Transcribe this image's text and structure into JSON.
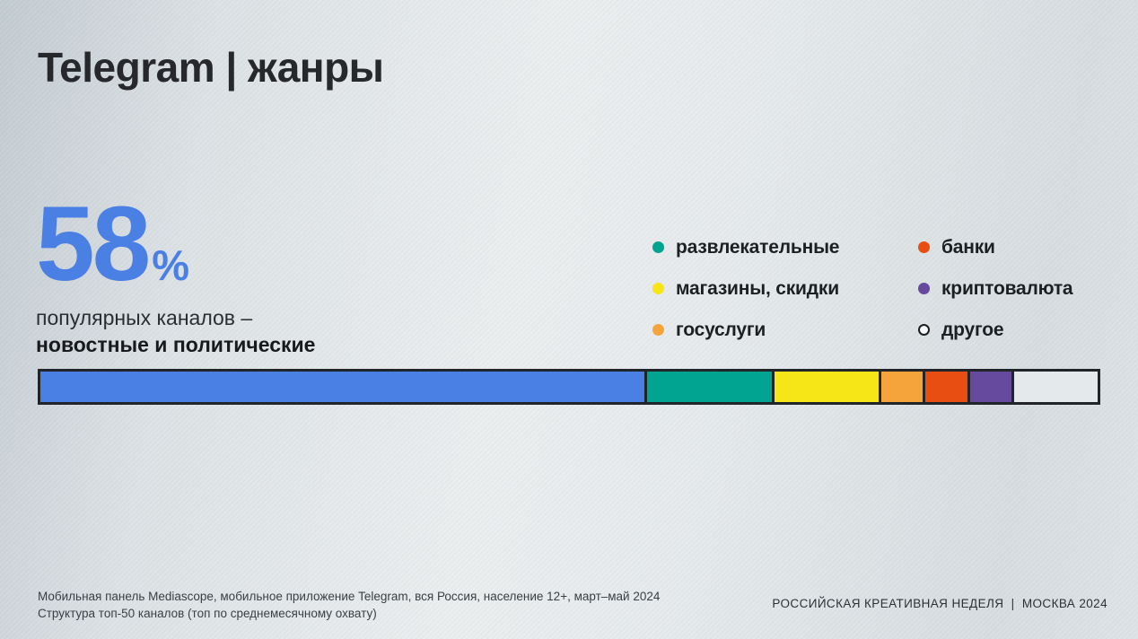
{
  "slide": {
    "title": "Telegram | жанры",
    "stat": {
      "value": "58",
      "percent_sign": "%",
      "line1": "популярных каналов –",
      "line2": "новостные и политические"
    },
    "legend": {
      "columns": [
        [
          {
            "label": "развлекательные",
            "color": "#00a490",
            "hollow": false
          },
          {
            "label": "магазины, скидки",
            "color": "#f7e617",
            "hollow": false
          },
          {
            "label": "госуслуги",
            "color": "#f5a43b",
            "hollow": false
          }
        ],
        [
          {
            "label": "банки",
            "color": "#e84e12",
            "hollow": false
          },
          {
            "label": "криптовалюта",
            "color": "#654a9e",
            "hollow": false
          },
          {
            "label": "другое",
            "color": "#fbfcfc",
            "hollow": true
          }
        ]
      ]
    },
    "footer": {
      "source_line1": "Мобильная панель Mediascope, мобильное приложение Telegram, вся Россия, население 12+, март–май 2024",
      "source_line2": "Структура топ-50 каналов (топ по среднемесячному охвату)",
      "event": "РОССИЙСКАЯ КРЕАТИВНАЯ НЕДЕЛЯ  |  МОСКВА 2024"
    }
  },
  "chart_data": {
    "type": "bar",
    "subtype": "stacked-horizontal-single-bar",
    "unit": "percent",
    "total": 100,
    "legend_position": "above-right",
    "highlight": {
      "value_label": "58%",
      "description": "популярных каналов – новостные и политические"
    },
    "segments": [
      {
        "label": "новостные и политические",
        "value": 58,
        "color": "#4a80e4"
      },
      {
        "label": "развлекательные",
        "value": 12,
        "color": "#00a490"
      },
      {
        "label": "магазины, скидки",
        "value": 10,
        "color": "#f7e617"
      },
      {
        "label": "госуслуги",
        "value": 4,
        "color": "#f5a43b"
      },
      {
        "label": "банки",
        "value": 4,
        "color": "#e84e12"
      },
      {
        "label": "криптовалюта",
        "value": 4,
        "color": "#654a9e"
      },
      {
        "label": "другое",
        "value": 8,
        "color": "#e4e9eb"
      }
    ]
  },
  "colors": {
    "accent_blue": "#4a80e4",
    "text_dark": "#1d2023",
    "bar_border": "#212529",
    "background_light": "#e8ebed"
  }
}
